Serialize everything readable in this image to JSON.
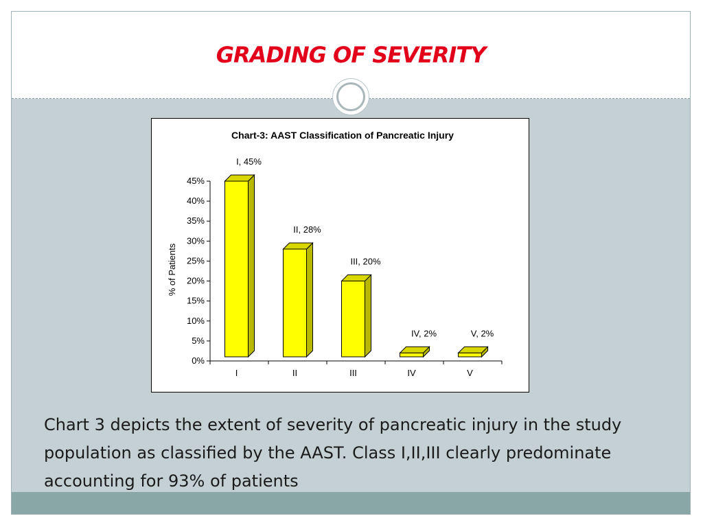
{
  "slide": {
    "title": "GRADING OF SEVERITY",
    "caption": "Chart 3 depicts the extent of severity of pancreatic injury in the study population as classified by the AAST.  Class I,II,III clearly predominate accounting for 93% of patients"
  },
  "colors": {
    "title": "#e2001a",
    "bar_front": "#ffff00",
    "bar_side": "#b8b800",
    "bar_top": "#d8d800",
    "background": "#c4d0d4",
    "bottom_band": "#8aa7a7"
  },
  "chart_data": {
    "type": "bar",
    "title": "Chart-3: AAST Classification of Pancreatic Injury",
    "xlabel": "",
    "ylabel": "% of Patients",
    "categories": [
      "I",
      "II",
      "III",
      "IV",
      "V"
    ],
    "values": [
      45,
      28,
      20,
      2,
      2
    ],
    "data_labels": [
      "I, 45%",
      "II, 28%",
      "III, 20%",
      "IV, 2%",
      "V, 2%"
    ],
    "ylim": [
      0,
      45
    ],
    "yticks": [
      0,
      5,
      10,
      15,
      20,
      25,
      30,
      35,
      40,
      45
    ],
    "ytick_labels": [
      "0%",
      "5%",
      "10%",
      "15%",
      "20%",
      "25%",
      "30%",
      "35%",
      "40%",
      "45%"
    ],
    "grid": false,
    "legend": "none",
    "style": "3d-column"
  }
}
